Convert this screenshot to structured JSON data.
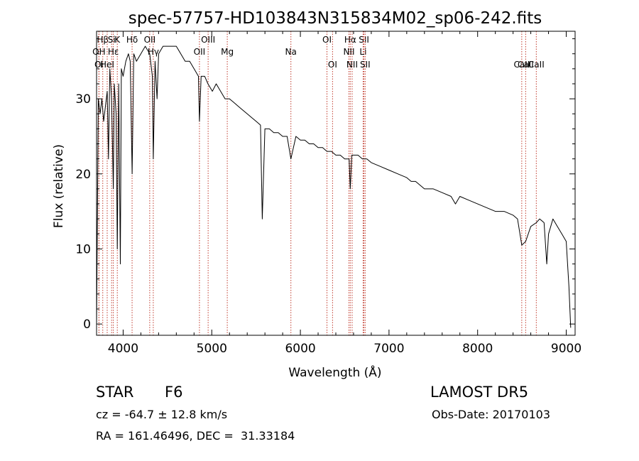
{
  "chart_data": {
    "type": "line",
    "title": "spec-57757-HD103843N315834M02_sp06-242.fits",
    "xlabel": "Wavelength (Å)",
    "ylabel": "Flux (relative)",
    "xlim": [
      3700,
      9100
    ],
    "ylim": [
      -1.5,
      39
    ],
    "xticks": [
      4000,
      5000,
      6000,
      7000,
      8000,
      9000
    ],
    "yticks": [
      0,
      10,
      20,
      30
    ],
    "grid": false,
    "series": [
      {
        "x": [
          3700,
          3720,
          3740,
          3760,
          3780,
          3800,
          3820,
          3835,
          3850,
          3870,
          3889,
          3900,
          3920,
          3934,
          3950,
          3968,
          3980,
          4000,
          4030,
          4060,
          4080,
          4101,
          4120,
          4150,
          4200,
          4250,
          4300,
          4330,
          4340,
          4360,
          4383,
          4400,
          4450,
          4500,
          4550,
          4600,
          4650,
          4700,
          4750,
          4800,
          4850,
          4861,
          4880,
          4920,
          4957,
          5007,
          5050,
          5100,
          5150,
          5200,
          5250,
          5300,
          5350,
          5400,
          5450,
          5500,
          5550,
          5570,
          5600,
          5650,
          5700,
          5750,
          5800,
          5850,
          5893,
          5950,
          6000,
          6050,
          6100,
          6150,
          6200,
          6250,
          6300,
          6350,
          6400,
          6450,
          6500,
          6550,
          6563,
          6580,
          6600,
          6650,
          6700,
          6750,
          6800,
          6900,
          7000,
          7100,
          7200,
          7250,
          7300,
          7400,
          7500,
          7600,
          7700,
          7750,
          7800,
          7900,
          8000,
          8100,
          8200,
          8300,
          8400,
          8450,
          8498,
          8542,
          8600,
          8662,
          8700,
          8750,
          8780,
          8800,
          8850,
          8900,
          8950,
          9000,
          9030,
          9050
        ],
        "y": [
          0,
          30,
          28,
          30,
          27,
          29,
          31,
          22,
          34,
          30,
          18,
          32,
          28,
          10,
          32,
          8,
          34,
          33,
          35,
          36,
          35,
          20,
          36,
          35,
          36,
          37,
          36,
          33,
          22,
          35,
          30,
          36,
          37,
          37,
          37,
          37,
          36,
          35,
          35,
          34,
          33,
          27,
          33,
          33,
          32,
          31,
          32,
          31,
          30,
          30,
          29.5,
          29,
          28.5,
          28,
          27.5,
          27,
          26.5,
          14,
          26,
          26,
          25.5,
          25.5,
          25,
          25,
          22,
          25,
          24.5,
          24.5,
          24,
          24,
          23.5,
          23.5,
          23,
          23,
          22.5,
          22.5,
          22,
          22,
          18,
          22.5,
          22.5,
          22.5,
          22,
          22,
          21.5,
          21,
          20.5,
          20,
          19.5,
          19,
          19,
          18,
          18,
          17.5,
          17,
          16,
          17,
          16.5,
          16,
          15.5,
          15,
          15,
          14.5,
          14,
          10.5,
          11,
          13,
          13.5,
          14,
          13.5,
          8,
          12,
          14,
          13,
          12,
          11,
          5,
          -0.5
        ]
      }
    ],
    "spectral_lines": [
      {
        "name": "Hβ",
        "wl": 3770
      },
      {
        "name": "K",
        "wl": 3934
      },
      {
        "name": "Hδ",
        "wl": 4101
      },
      {
        "name": "OII",
        "wl": 4300
      },
      {
        "name": "OIII",
        "wl": 4959
      },
      {
        "name": "OI",
        "wl": 6300
      },
      {
        "name": "Hα",
        "wl": 6563
      },
      {
        "name": "SII",
        "wl": 6717
      },
      {
        "name": "OH",
        "wl": 3727
      },
      {
        "name": "Hε",
        "wl": 3889
      },
      {
        "name": "Hγ",
        "wl": 4340
      },
      {
        "name": "OII",
        "wl": 4861
      },
      {
        "name": "Mg",
        "wl": 5175
      },
      {
        "name": "Na",
        "wl": 5893
      },
      {
        "name": "NII",
        "wl": 6548
      },
      {
        "name": "Li",
        "wl": 6708
      },
      {
        "name": "CaII",
        "wl": 8542
      },
      {
        "name": "OI",
        "wl": 6363
      },
      {
        "name": "NII",
        "wl": 6584
      },
      {
        "name": "SII",
        "wl": 6731
      },
      {
        "name": "CaII",
        "wl": 8498
      },
      {
        "name": "CaII",
        "wl": 8662
      },
      {
        "name": "Oi",
        "wl": 3727
      },
      {
        "name": "HeI",
        "wl": 3820
      },
      {
        "name": "Si",
        "wl": 3870
      }
    ]
  },
  "info": {
    "object_type": "STAR",
    "subclass": "F6",
    "survey": "LAMOST DR5",
    "cz": "cz = -64.7 ± 12.8 km/s",
    "obs_date": "Obs-Date: 20170103",
    "coords": "RA = 161.46496, DEC =  31.33184"
  }
}
